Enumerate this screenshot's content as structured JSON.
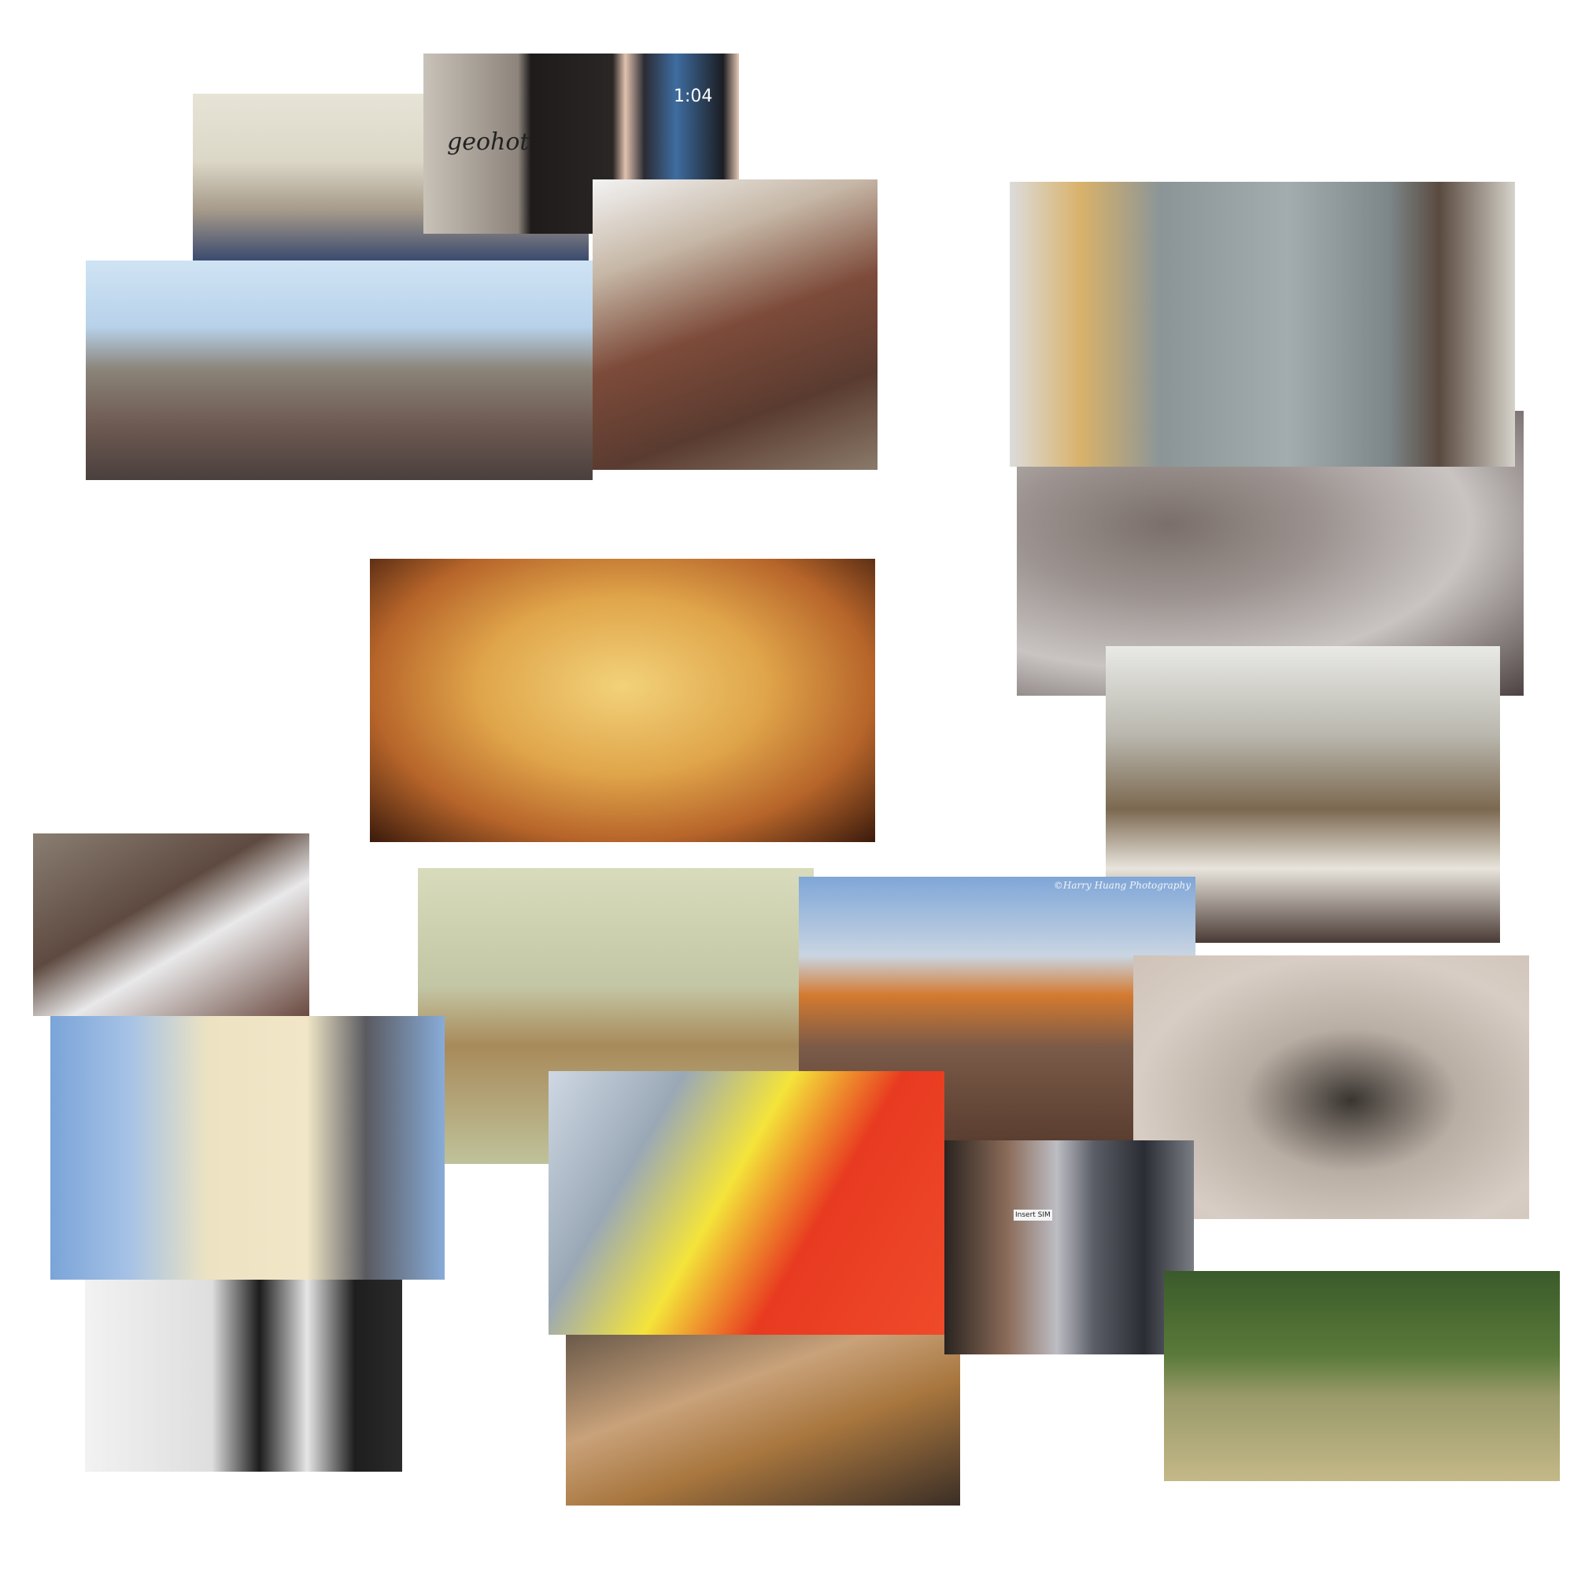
{
  "photo_texts": {
    "iphone_engraving": "geohot",
    "iphone_clock": "1:04",
    "train_watermark": "©Harry Huang Photography",
    "phone_screen": "Insert SIM"
  }
}
